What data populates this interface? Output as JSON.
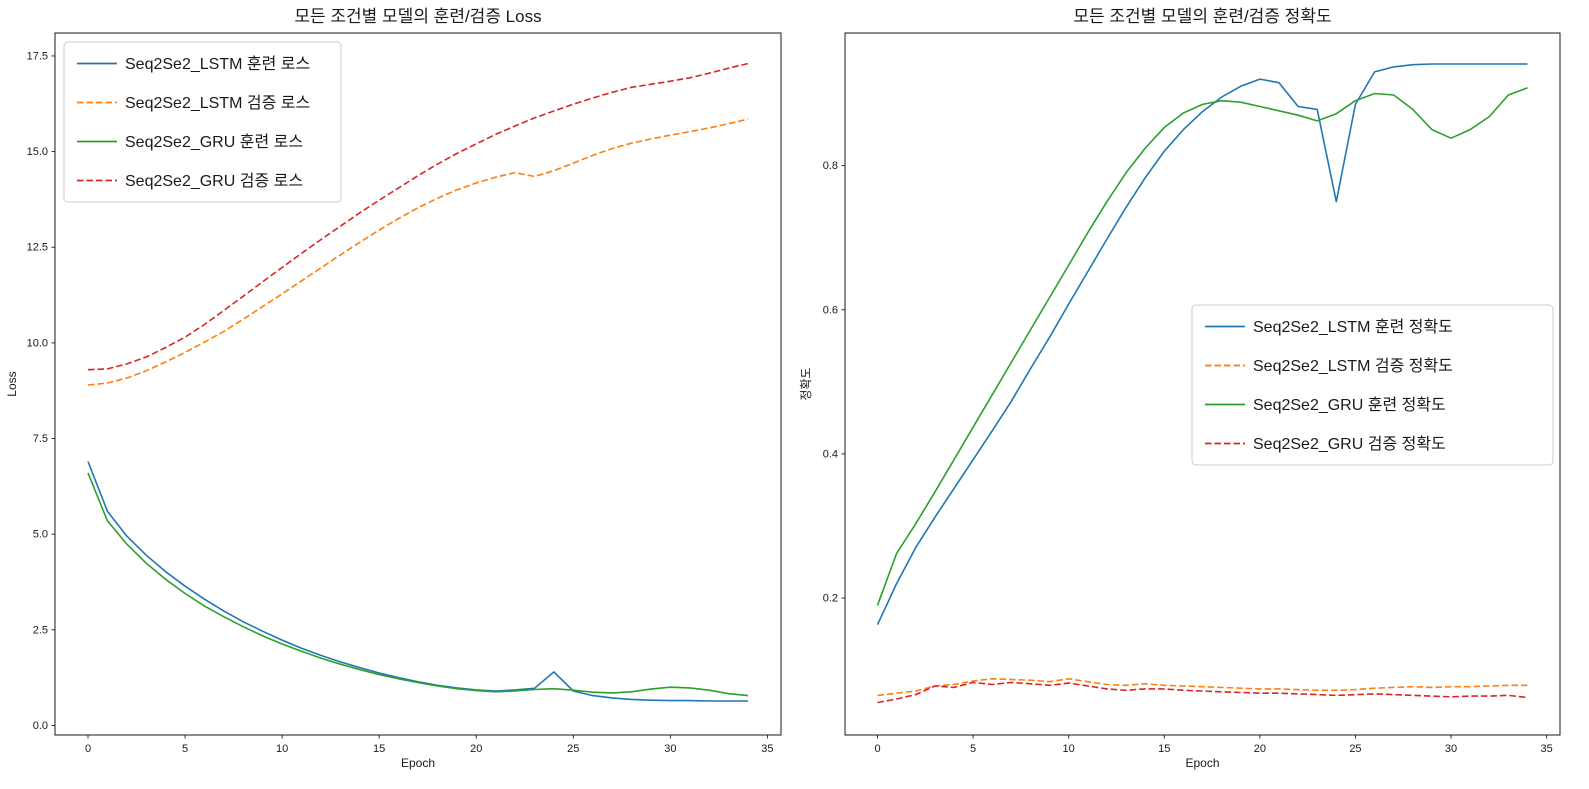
{
  "figure": {
    "background": "#ffffff"
  },
  "chart_data": [
    {
      "type": "line",
      "title": "모든 조건별 모델의 훈련/검증 Loss",
      "xlabel": "Epoch",
      "ylabel": "Loss",
      "grid": false,
      "legend_position": "upper-left",
      "xlim": [
        -1.7,
        35.7
      ],
      "ylim": [
        -0.25,
        18.1
      ],
      "xticks": [
        0,
        5,
        10,
        15,
        20,
        25,
        30,
        35
      ],
      "xtick_labels": [
        "0",
        "5",
        "10",
        "15",
        "20",
        "25",
        "30",
        "35"
      ],
      "yticks": [
        0.0,
        2.5,
        5.0,
        7.5,
        10.0,
        12.5,
        15.0,
        17.5
      ],
      "ytick_labels": [
        "0.0",
        "2.5",
        "5.0",
        "7.5",
        "10.0",
        "12.5",
        "15.0",
        "17.5"
      ],
      "x": [
        0,
        1,
        2,
        3,
        4,
        5,
        6,
        7,
        8,
        9,
        10,
        11,
        12,
        13,
        14,
        15,
        16,
        17,
        18,
        19,
        20,
        21,
        22,
        23,
        24,
        25,
        26,
        27,
        28,
        29,
        30,
        31,
        32,
        33,
        34
      ],
      "series": [
        {
          "name": "Seq2Se2_LSTM 훈련 로스",
          "color": "#1f77b4",
          "style": "solid",
          "values": [
            6.9,
            5.6,
            4.95,
            4.45,
            4.02,
            3.64,
            3.3,
            2.99,
            2.71,
            2.46,
            2.23,
            2.02,
            1.83,
            1.66,
            1.51,
            1.37,
            1.25,
            1.14,
            1.05,
            0.98,
            0.93,
            0.9,
            0.93,
            0.97,
            1.4,
            0.9,
            0.78,
            0.72,
            0.68,
            0.66,
            0.65,
            0.65,
            0.64,
            0.64,
            0.64
          ]
        },
        {
          "name": "Seq2Se2_LSTM 검증 로스",
          "color": "#ff7f0e",
          "style": "dashed",
          "values": [
            8.9,
            8.95,
            9.08,
            9.27,
            9.5,
            9.75,
            10.02,
            10.3,
            10.62,
            10.95,
            11.28,
            11.62,
            11.96,
            12.3,
            12.63,
            12.95,
            13.25,
            13.53,
            13.78,
            14.0,
            14.18,
            14.33,
            14.45,
            14.35,
            14.5,
            14.7,
            14.9,
            15.08,
            15.22,
            15.33,
            15.43,
            15.52,
            15.62,
            15.73,
            15.85
          ]
        },
        {
          "name": "Seq2Se2_GRU 훈련 로스",
          "color": "#2ca02c",
          "style": "solid",
          "values": [
            6.6,
            5.35,
            4.74,
            4.24,
            3.82,
            3.45,
            3.12,
            2.84,
            2.58,
            2.34,
            2.13,
            1.94,
            1.76,
            1.6,
            1.46,
            1.33,
            1.22,
            1.12,
            1.03,
            0.96,
            0.91,
            0.88,
            0.9,
            0.94,
            0.96,
            0.92,
            0.87,
            0.85,
            0.88,
            0.95,
            1.0,
            0.98,
            0.92,
            0.83,
            0.78
          ]
        },
        {
          "name": "Seq2Se2_GRU 검증 로스",
          "color": "#d62728",
          "style": "dashed",
          "values": [
            9.3,
            9.32,
            9.45,
            9.63,
            9.88,
            10.15,
            10.48,
            10.85,
            11.22,
            11.6,
            11.97,
            12.34,
            12.7,
            13.05,
            13.4,
            13.73,
            14.05,
            14.37,
            14.67,
            14.95,
            15.2,
            15.45,
            15.67,
            15.88,
            16.06,
            16.24,
            16.4,
            16.55,
            16.68,
            16.76,
            16.84,
            16.93,
            17.05,
            17.18,
            17.3
          ]
        }
      ]
    },
    {
      "type": "line",
      "title": "모든 조건별 모델의 훈련/검증 정확도",
      "xlabel": "Epoch",
      "ylabel": "정확도",
      "grid": false,
      "legend_position": "center-right",
      "xlim": [
        -1.7,
        35.7
      ],
      "ylim": [
        0.01,
        0.984
      ],
      "xticks": [
        0,
        5,
        10,
        15,
        20,
        25,
        30,
        35
      ],
      "xtick_labels": [
        "0",
        "5",
        "10",
        "15",
        "20",
        "25",
        "30",
        "35"
      ],
      "yticks": [
        0.2,
        0.4,
        0.6,
        0.8
      ],
      "ytick_labels": [
        "0.2",
        "0.4",
        "0.6",
        "0.8"
      ],
      "x": [
        0,
        1,
        2,
        3,
        4,
        5,
        6,
        7,
        8,
        9,
        10,
        11,
        12,
        13,
        14,
        15,
        16,
        17,
        18,
        19,
        20,
        21,
        22,
        23,
        24,
        25,
        26,
        27,
        28,
        29,
        30,
        31,
        32,
        33,
        34
      ],
      "series": [
        {
          "name": "Seq2Se2_LSTM 훈련 정확도",
          "color": "#1f77b4",
          "style": "solid",
          "values": [
            0.163,
            0.22,
            0.27,
            0.312,
            0.352,
            0.392,
            0.432,
            0.473,
            0.518,
            0.562,
            0.608,
            0.653,
            0.698,
            0.742,
            0.783,
            0.82,
            0.85,
            0.875,
            0.895,
            0.91,
            0.92,
            0.915,
            0.882,
            0.878,
            0.75,
            0.885,
            0.93,
            0.937,
            0.94,
            0.941,
            0.941,
            0.941,
            0.941,
            0.941,
            0.941
          ]
        },
        {
          "name": "Seq2Se2_LSTM 검증 정확도",
          "color": "#ff7f0e",
          "style": "dashed",
          "values": [
            0.065,
            0.068,
            0.071,
            0.078,
            0.08,
            0.085,
            0.088,
            0.087,
            0.086,
            0.084,
            0.088,
            0.084,
            0.08,
            0.079,
            0.081,
            0.079,
            0.078,
            0.077,
            0.076,
            0.075,
            0.074,
            0.074,
            0.073,
            0.072,
            0.072,
            0.073,
            0.075,
            0.076,
            0.077,
            0.076,
            0.077,
            0.077,
            0.078,
            0.079,
            0.079
          ]
        },
        {
          "name": "Seq2Se2_GRU 훈련 정확도",
          "color": "#2ca02c",
          "style": "solid",
          "values": [
            0.19,
            0.262,
            0.303,
            0.347,
            0.392,
            0.437,
            0.482,
            0.527,
            0.572,
            0.617,
            0.662,
            0.707,
            0.75,
            0.79,
            0.824,
            0.853,
            0.873,
            0.885,
            0.89,
            0.888,
            0.882,
            0.876,
            0.87,
            0.862,
            0.872,
            0.89,
            0.9,
            0.898,
            0.878,
            0.85,
            0.838,
            0.85,
            0.868,
            0.898,
            0.908
          ]
        },
        {
          "name": "Seq2Se2_GRU 검증 정확도",
          "color": "#d62728",
          "style": "dashed",
          "values": [
            0.055,
            0.06,
            0.066,
            0.078,
            0.076,
            0.083,
            0.08,
            0.083,
            0.081,
            0.079,
            0.082,
            0.078,
            0.074,
            0.072,
            0.074,
            0.074,
            0.072,
            0.071,
            0.07,
            0.069,
            0.068,
            0.068,
            0.067,
            0.066,
            0.065,
            0.066,
            0.067,
            0.066,
            0.065,
            0.064,
            0.063,
            0.064,
            0.064,
            0.065,
            0.062
          ]
        }
      ]
    }
  ]
}
